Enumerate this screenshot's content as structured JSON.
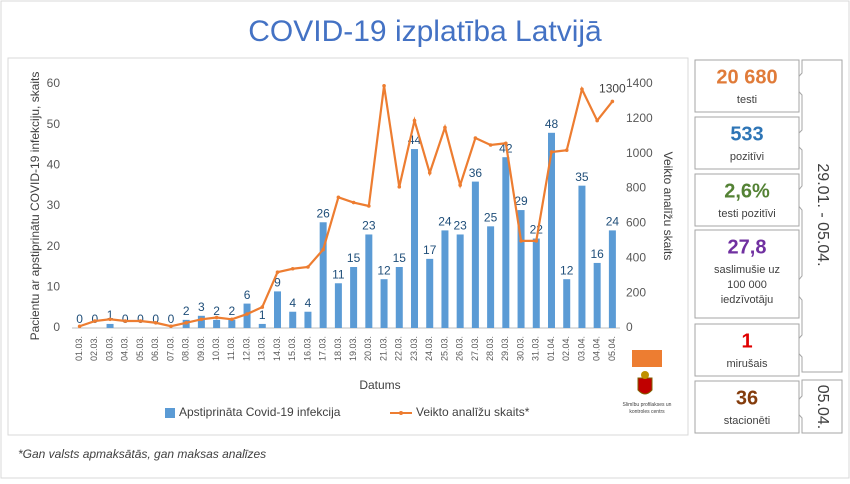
{
  "chart_data": {
    "type": "bar",
    "title": "COVID-19 izplatība Latvijā",
    "xlabel": "Datums",
    "ylabel": "Pacientu ar apstiprinātu COVID-19 infekciju, skaits",
    "y2label": "Veikto analīžu skaits",
    "categories": [
      "01.03.",
      "02.03.",
      "03.03.",
      "04.03.",
      "05.03.",
      "06.03.",
      "07.03.",
      "08.03.",
      "09.03.",
      "10.03.",
      "11.03.",
      "12.03.",
      "13.03.",
      "14.03.",
      "15.03.",
      "16.03.",
      "17.03.",
      "18.03.",
      "19.03.",
      "20.03.",
      "21.03.",
      "22.03.",
      "23.03.",
      "24.03.",
      "25.03.",
      "26.03.",
      "27.03.",
      "28.03.",
      "29.03.",
      "30.03.",
      "31.03.",
      "01.04.",
      "02.04.",
      "03.04.",
      "04.04.",
      "05.04."
    ],
    "series": [
      {
        "name": "Apstiprināta Covid-19 infekcija",
        "type": "bar",
        "color": "#5b9bd5",
        "values": [
          0,
          0,
          1,
          0,
          0,
          0,
          0,
          2,
          3,
          2,
          2,
          6,
          1,
          9,
          4,
          4,
          26,
          11,
          15,
          23,
          12,
          15,
          44,
          17,
          24,
          23,
          36,
          25,
          42,
          29,
          22,
          48,
          12,
          35,
          16,
          24
        ]
      },
      {
        "name": "Veikto analīžu skaits*",
        "type": "line",
        "axis": "y2",
        "color": "#ed7d31",
        "values": [
          10,
          40,
          50,
          40,
          40,
          30,
          10,
          30,
          50,
          60,
          50,
          80,
          120,
          320,
          340,
          350,
          450,
          750,
          720,
          700,
          1390,
          810,
          1190,
          890,
          1150,
          820,
          1090,
          1050,
          1060,
          500,
          500,
          1010,
          1020,
          1370,
          1190,
          1300
        ]
      }
    ],
    "ylim": [
      0,
      60
    ],
    "yticks": [
      0,
      10,
      20,
      30,
      40,
      50,
      60
    ],
    "y2lim": [
      0,
      1400
    ],
    "y2ticks": [
      0,
      200,
      400,
      600,
      800,
      1000,
      1200,
      1400
    ],
    "footnote": "*Gan valsts apmaksātās, gan maksas analīzes"
  },
  "panels": [
    {
      "value": "20 680",
      "label_lines": [
        "testi"
      ],
      "color": "#e07b39"
    },
    {
      "value": "533",
      "label_lines": [
        "pozitīvi"
      ],
      "color": "#2e75b6"
    },
    {
      "value": "2,6%",
      "label_lines": [
        "testi pozitīvi"
      ],
      "color": "#548235"
    },
    {
      "value": "27,8",
      "label_lines": [
        "saslimušie uz",
        "100 000",
        "iedzīvotāju"
      ],
      "color": "#7030a0"
    },
    {
      "value": "1",
      "label_lines": [
        "mirušais"
      ],
      "color": "#e00000"
    },
    {
      "value": "36",
      "label_lines": [
        "stacionēti"
      ],
      "color": "#843c0c"
    }
  ],
  "periods": [
    "29.01. - 05.04.",
    "05.04."
  ],
  "logo_text": [
    "Slimību profilakses un",
    "kontroles centrs"
  ]
}
